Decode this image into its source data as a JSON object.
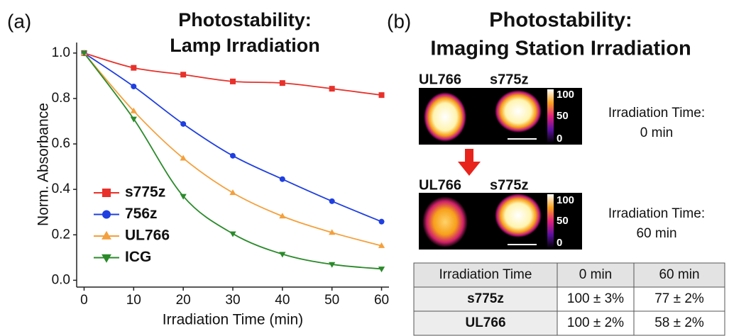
{
  "chart_data": {
    "type": "line",
    "panel_label": "(a)",
    "title": [
      "Photostability:",
      "Lamp Irradiation"
    ],
    "x_label": "Irradiation Time (min)",
    "y_label": "Norm. Absorbance",
    "x": [
      0,
      10,
      20,
      30,
      40,
      50,
      60
    ],
    "series": [
      {
        "name": "s775z",
        "color": "#e8312a",
        "marker": "square",
        "values": [
          1.0,
          0.935,
          0.905,
          0.875,
          0.868,
          0.843,
          0.815
        ]
      },
      {
        "name": "756z",
        "color": "#1f3fe0",
        "marker": "circle",
        "values": [
          1.0,
          0.853,
          0.688,
          0.548,
          0.445,
          0.348,
          0.258
        ]
      },
      {
        "name": "UL766",
        "color": "#f4a03c",
        "marker": "triangle-up",
        "values": [
          1.0,
          0.745,
          0.537,
          0.385,
          0.282,
          0.21,
          0.152
        ]
      },
      {
        "name": "ICG",
        "color": "#2a8a2a",
        "marker": "triangle-down",
        "values": [
          1.0,
          0.71,
          0.37,
          0.205,
          0.115,
          0.07,
          0.05
        ]
      }
    ],
    "xlim": [
      -1.5,
      61.5
    ],
    "ylim": [
      -0.03,
      1.04
    ],
    "xticks": [
      0,
      10,
      20,
      30,
      40,
      50,
      60
    ],
    "yticks": [
      {
        "value": 0,
        "label": "0.0"
      },
      0.2,
      0.4,
      0.6,
      0.8,
      {
        "value": 1,
        "label": "1.0"
      }
    ],
    "grid": false,
    "legend": "lower left"
  },
  "panel_b": {
    "panel_label": "(b)",
    "title": [
      "Photostability:",
      "Imaging Station Irradiation"
    ],
    "images": [
      {
        "labels": [
          "UL766",
          "s775z"
        ],
        "colorbar_ticks": [
          "100",
          "50",
          "0"
        ],
        "time_label": "Irradiation Time:",
        "time": "0 min"
      },
      {
        "labels": [
          "UL766",
          "s775z"
        ],
        "colorbar_ticks": [
          "100",
          "50",
          "0"
        ],
        "time_label": "Irradiation Time:",
        "time": "60 min"
      }
    ],
    "table": {
      "header": [
        "Irradiation Time",
        "0 min",
        "60 min"
      ],
      "rows": [
        [
          "s775z",
          "100 ± 3%",
          "77 ± 2%"
        ],
        [
          "UL766",
          "100 ± 2%",
          "58 ± 2%"
        ]
      ]
    }
  }
}
